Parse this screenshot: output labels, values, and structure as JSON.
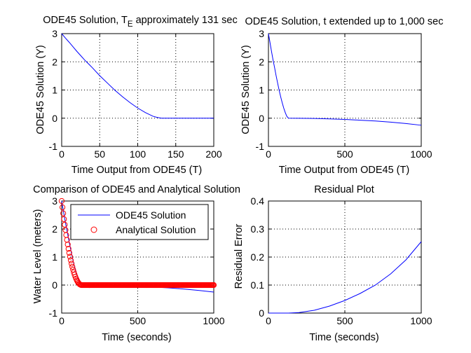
{
  "figure": {
    "background": "#ffffff"
  },
  "colors": {
    "ode45": "#0000ff",
    "analytical": "#ff0000",
    "axis": "#000000",
    "grid": "#000000"
  },
  "chart_data": [
    {
      "type": "line",
      "title_main": "ODE45 Solution, T",
      "title_sub": "E",
      "title_rest": " approximately 131 sec",
      "xlabel": "Time Output from ODE45 (T)",
      "ylabel": "ODE45 Solution (Y)",
      "xlim": [
        0,
        200
      ],
      "ylim": [
        -1,
        3
      ],
      "xticks": [
        0,
        50,
        100,
        150,
        200
      ],
      "yticks": [
        -1,
        0,
        1,
        2,
        3
      ],
      "xtick_labels": [
        "0",
        "50",
        "100",
        "150",
        "200"
      ],
      "ytick_labels": [
        "-1",
        "0",
        "1",
        "2",
        "3"
      ],
      "grid": true,
      "series": [
        {
          "color": "#0000ff",
          "x": [
            0,
            5,
            10,
            15,
            20,
            25,
            30,
            40,
            50,
            60,
            70,
            80,
            90,
            100,
            110,
            120,
            125,
            130,
            131,
            140,
            160,
            180,
            200
          ],
          "y": [
            3.0,
            2.84,
            2.69,
            2.53,
            2.37,
            2.22,
            2.07,
            1.8,
            1.51,
            1.25,
            0.99,
            0.76,
            0.55,
            0.36,
            0.2,
            0.07,
            0.03,
            0.005,
            0.0,
            0.0,
            0.0,
            0.0,
            0.0
          ]
        }
      ]
    },
    {
      "type": "line",
      "title": "ODE45 Solution, t extended up to 1,000 sec",
      "xlabel": "Time Output from ODE45 (T)",
      "ylabel": "ODE45 Solution (Y)",
      "xlim": [
        0,
        1000
      ],
      "ylim": [
        -1,
        3
      ],
      "xticks": [
        0,
        500,
        1000
      ],
      "yticks": [
        -1,
        0,
        1,
        2,
        3
      ],
      "xtick_labels": [
        "0",
        "500",
        "1000"
      ],
      "ytick_labels": [
        "-1",
        "0",
        "1",
        "2",
        "3"
      ],
      "grid": true,
      "series": [
        {
          "color": "#0000ff",
          "x": [
            0,
            10,
            20,
            30,
            40,
            50,
            60,
            70,
            80,
            90,
            100,
            110,
            120,
            131,
            200,
            300,
            400,
            500,
            600,
            700,
            800,
            900,
            1000
          ],
          "y": [
            3.0,
            2.69,
            2.37,
            2.07,
            1.8,
            1.51,
            1.25,
            0.99,
            0.76,
            0.55,
            0.36,
            0.2,
            0.07,
            0.0,
            -0.002,
            -0.01,
            -0.025,
            -0.045,
            -0.07,
            -0.1,
            -0.14,
            -0.19,
            -0.25
          ]
        }
      ]
    },
    {
      "type": "line",
      "title": "Comparison of ODE45 and Analytical Solution",
      "xlabel": "Time (seconds)",
      "ylabel": "Water Level (meters)",
      "xlim": [
        0,
        1000
      ],
      "ylim": [
        -1,
        3
      ],
      "xticks": [
        0,
        500,
        1000
      ],
      "yticks": [
        -1,
        0,
        1,
        2,
        3
      ],
      "xtick_labels": [
        "0",
        "500",
        "1000"
      ],
      "ytick_labels": [
        "-1",
        "0",
        "1",
        "2",
        "3"
      ],
      "grid": true,
      "legend": {
        "location": "top-right",
        "entries": [
          "ODE45 Solution",
          "Analytical Solution"
        ]
      },
      "series": [
        {
          "name": "ODE45 Solution",
          "color": "#0000ff",
          "marker": "line",
          "x": [
            0,
            10,
            20,
            30,
            40,
            50,
            60,
            70,
            80,
            90,
            100,
            110,
            120,
            131,
            200,
            300,
            400,
            500,
            600,
            700,
            800,
            900,
            1000
          ],
          "y": [
            3.0,
            2.69,
            2.37,
            2.07,
            1.8,
            1.51,
            1.25,
            0.99,
            0.76,
            0.55,
            0.36,
            0.2,
            0.07,
            0.0,
            -0.002,
            -0.01,
            -0.025,
            -0.045,
            -0.07,
            -0.1,
            -0.14,
            -0.19,
            -0.25
          ]
        },
        {
          "name": "Analytical Solution",
          "color": "#ff0000",
          "marker": "circle",
          "x_start": 0,
          "x_end": 1000,
          "x_step": 5,
          "t_empty": 131.2,
          "formula": "y = 3*(1 - t/131.2)^2 for t <= 131.2, else 0"
        }
      ]
    },
    {
      "type": "line",
      "title": "Residual Plot",
      "xlabel": "Time (seconds)",
      "ylabel": "Residual Error",
      "xlim": [
        0,
        1000
      ],
      "ylim": [
        0,
        0.4
      ],
      "xticks": [
        0,
        500,
        1000
      ],
      "yticks": [
        0,
        0.1,
        0.2,
        0.3,
        0.4
      ],
      "xtick_labels": [
        "0",
        "500",
        "1000"
      ],
      "ytick_labels": [
        "0",
        "0.1",
        "0.2",
        "0.3",
        "0.4"
      ],
      "grid": true,
      "series": [
        {
          "color": "#0000ff",
          "x": [
            0,
            50,
            100,
            131,
            200,
            300,
            400,
            500,
            600,
            700,
            800,
            900,
            1000
          ],
          "y": [
            0.0,
            0.0,
            0.0,
            0.0,
            0.002,
            0.01,
            0.025,
            0.045,
            0.07,
            0.1,
            0.14,
            0.19,
            0.255
          ]
        }
      ]
    }
  ]
}
